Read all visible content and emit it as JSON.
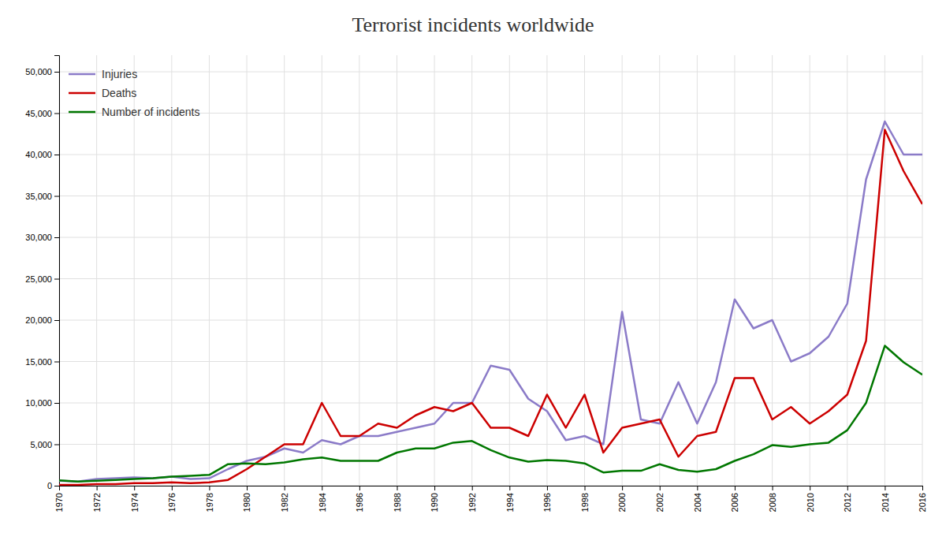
{
  "chart_data": {
    "type": "line",
    "title": "Terrorist incidents worldwide",
    "x": [
      1970,
      1971,
      1972,
      1973,
      1974,
      1975,
      1976,
      1977,
      1978,
      1979,
      1980,
      1981,
      1982,
      1983,
      1984,
      1985,
      1986,
      1987,
      1988,
      1989,
      1990,
      1991,
      1992,
      1993,
      1994,
      1995,
      1996,
      1997,
      1998,
      1999,
      2000,
      2001,
      2002,
      2003,
      2004,
      2005,
      2006,
      2007,
      2008,
      2009,
      2010,
      2011,
      2012,
      2013,
      2014,
      2015,
      2016
    ],
    "series": [
      {
        "name": "Injuries",
        "color": "#8B7BC8",
        "values": [
          600,
          500,
          800,
          900,
          1000,
          900,
          1100,
          800,
          900,
          2000,
          3000,
          3500,
          4500,
          4000,
          5500,
          5000,
          6000,
          6000,
          6500,
          7000,
          7500,
          10000,
          10000,
          14500,
          14000,
          10500,
          9000,
          5500,
          6000,
          5000,
          21000,
          8000,
          7500,
          12500,
          7500,
          12500,
          22500,
          19000,
          20000,
          15000,
          16000,
          18000,
          22000,
          37000,
          44000,
          40000,
          40000
        ]
      },
      {
        "name": "Deaths",
        "color": "#CC0000",
        "values": [
          100,
          100,
          200,
          200,
          300,
          300,
          400,
          300,
          400,
          700,
          2000,
          3500,
          5000,
          5000,
          10000,
          6000,
          6000,
          7500,
          7000,
          8500,
          9500,
          9000,
          10000,
          7000,
          7000,
          6000,
          11000,
          7000,
          11000,
          4000,
          7000,
          7500,
          8000,
          3500,
          6000,
          6500,
          13000,
          13000,
          8000,
          9500,
          7500,
          9000,
          11000,
          17500,
          43000,
          38000,
          34000
        ]
      },
      {
        "name": "Number of incidents",
        "color": "#007700",
        "values": [
          650,
          500,
          600,
          700,
          800,
          900,
          1100,
          1200,
          1300,
          2600,
          2700,
          2600,
          2800,
          3200,
          3400,
          3000,
          3000,
          3000,
          4000,
          4500,
          4500,
          5200,
          5400,
          4300,
          3400,
          2900,
          3100,
          3000,
          2700,
          1600,
          1800,
          1800,
          2600,
          1900,
          1700,
          2000,
          3000,
          3800,
          4900,
          4700,
          5000,
          5200,
          6700,
          10000,
          16900,
          14900,
          13400
        ]
      }
    ],
    "xlim": [
      1970,
      2016
    ],
    "xticks": [
      1970,
      1972,
      1974,
      1976,
      1978,
      1980,
      1982,
      1984,
      1986,
      1988,
      1990,
      1992,
      1994,
      1996,
      1998,
      2000,
      2002,
      2004,
      2006,
      2008,
      2010,
      2012,
      2014,
      2016
    ],
    "ylim": [
      0,
      52000
    ],
    "yticks": [
      0,
      {
        "value": 5000,
        "label": "5,000"
      },
      {
        "value": 10000,
        "label": "10,000"
      },
      {
        "value": 15000,
        "label": "15,000"
      },
      {
        "value": 20000,
        "label": "20,000"
      },
      {
        "value": 25000,
        "label": "25,000"
      },
      {
        "value": 30000,
        "label": "30,000"
      },
      {
        "value": 35000,
        "label": "35,000"
      },
      {
        "value": 40000,
        "label": "40,000"
      },
      {
        "value": 45000,
        "label": "45,000"
      },
      {
        "value": 50000,
        "label": "50,000"
      }
    ],
    "grid": true,
    "legend": "top-left"
  }
}
